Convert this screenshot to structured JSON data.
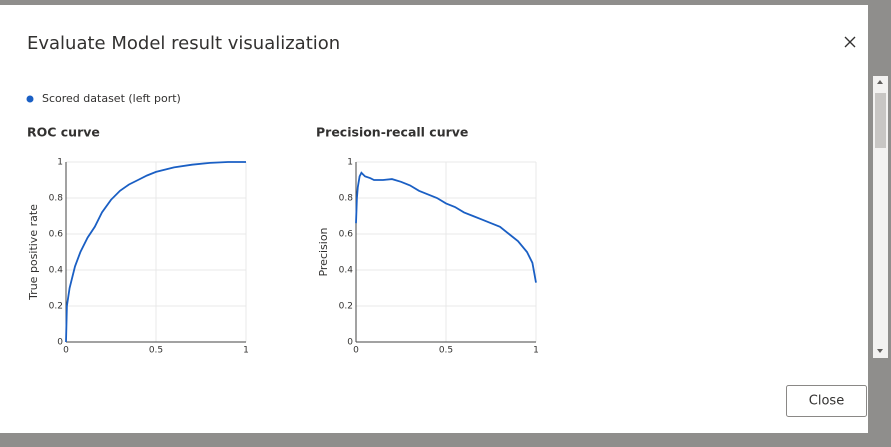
{
  "dialog": {
    "title": "Evaluate Model result visualization",
    "legend": "Scored dataset (left port)",
    "close_button": "Close"
  },
  "chart_data": [
    {
      "type": "line",
      "title": "ROC curve",
      "y_label": "True positive rate",
      "color": "#1a5fc4",
      "grid": true,
      "xlim": [
        0,
        1
      ],
      "ylim": [
        0,
        1
      ],
      "xticks": [
        0,
        0.5,
        1
      ],
      "yticks": [
        0,
        0.2,
        0.4,
        0.6,
        0.8,
        1
      ],
      "x": [
        0,
        0.005,
        0.02,
        0.05,
        0.08,
        0.12,
        0.16,
        0.2,
        0.25,
        0.3,
        0.35,
        0.4,
        0.45,
        0.5,
        0.6,
        0.7,
        0.8,
        0.9,
        1
      ],
      "values": [
        0,
        0.2,
        0.3,
        0.42,
        0.5,
        0.58,
        0.64,
        0.72,
        0.79,
        0.84,
        0.875,
        0.9,
        0.925,
        0.945,
        0.97,
        0.985,
        0.995,
        1,
        1
      ]
    },
    {
      "type": "line",
      "title": "Precision-recall curve",
      "y_label": "Precision",
      "color": "#1a5fc4",
      "grid": true,
      "xlim": [
        0,
        1
      ],
      "ylim": [
        0,
        1
      ],
      "xticks": [
        0,
        0.5,
        1
      ],
      "yticks": [
        0,
        0.2,
        0.4,
        0.6,
        0.8,
        1
      ],
      "x": [
        0,
        0.005,
        0.01,
        0.02,
        0.03,
        0.05,
        0.08,
        0.1,
        0.15,
        0.2,
        0.25,
        0.3,
        0.35,
        0.4,
        0.45,
        0.5,
        0.55,
        0.6,
        0.65,
        0.7,
        0.75,
        0.8,
        0.85,
        0.9,
        0.95,
        0.98,
        1
      ],
      "values": [
        0.66,
        0.8,
        0.86,
        0.92,
        0.94,
        0.92,
        0.91,
        0.9,
        0.9,
        0.905,
        0.89,
        0.87,
        0.84,
        0.82,
        0.8,
        0.77,
        0.75,
        0.72,
        0.7,
        0.68,
        0.66,
        0.64,
        0.6,
        0.56,
        0.5,
        0.44,
        0.33
      ]
    }
  ]
}
